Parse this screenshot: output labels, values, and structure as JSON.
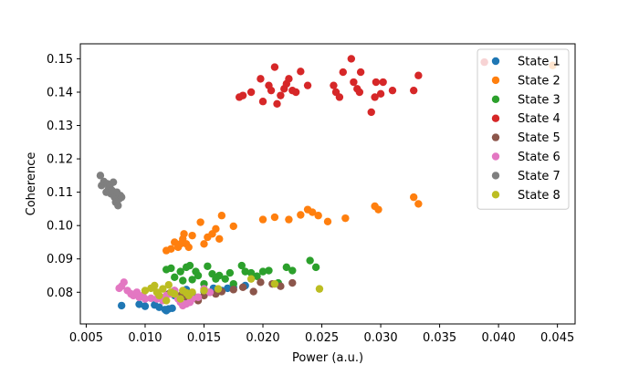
{
  "chart_data": {
    "type": "scatter",
    "title": "",
    "xlabel": "Power (a.u.)",
    "ylabel": "Coherence",
    "xlim": [
      0.0045,
      0.0465
    ],
    "ylim": [
      0.0705,
      0.1545
    ],
    "xticks": [
      0.005,
      0.01,
      0.015,
      0.02,
      0.025,
      0.03,
      0.035,
      0.04,
      0.045
    ],
    "xtick_labels": [
      "0.005",
      "0.010",
      "0.015",
      "0.020",
      "0.025",
      "0.030",
      "0.035",
      "0.040",
      "0.045"
    ],
    "yticks": [
      0.08,
      0.09,
      0.1,
      0.11,
      0.12,
      0.13,
      0.14,
      0.15
    ],
    "ytick_labels": [
      "0.08",
      "0.09",
      "0.10",
      "0.11",
      "0.12",
      "0.13",
      "0.14",
      "0.15"
    ],
    "grid": false,
    "legend_position": "top-right",
    "series": [
      {
        "name": "State 1",
        "color": "#1f77b4",
        "points": [
          [
            0.008,
            0.076
          ],
          [
            0.0095,
            0.0764
          ],
          [
            0.01,
            0.0758
          ],
          [
            0.0108,
            0.0762
          ],
          [
            0.0112,
            0.0755
          ],
          [
            0.0117,
            0.0748
          ],
          [
            0.012,
            0.075
          ],
          [
            0.0123,
            0.0752
          ],
          [
            0.0118,
            0.0745
          ],
          [
            0.0125,
            0.079
          ],
          [
            0.014,
            0.0795
          ],
          [
            0.015,
            0.0802
          ],
          [
            0.0158,
            0.0812
          ],
          [
            0.0165,
            0.0805
          ],
          [
            0.017,
            0.0812
          ],
          [
            0.0175,
            0.0815
          ],
          [
            0.0185,
            0.082
          ],
          [
            0.0135,
            0.0808
          ]
        ]
      },
      {
        "name": "State 2",
        "color": "#ff7f0e",
        "points": [
          [
            0.0118,
            0.0925
          ],
          [
            0.0122,
            0.093
          ],
          [
            0.0125,
            0.095
          ],
          [
            0.0128,
            0.0935
          ],
          [
            0.013,
            0.0945
          ],
          [
            0.0132,
            0.096
          ],
          [
            0.0133,
            0.0975
          ],
          [
            0.0135,
            0.0945
          ],
          [
            0.0137,
            0.0935
          ],
          [
            0.014,
            0.097
          ],
          [
            0.0147,
            0.101
          ],
          [
            0.015,
            0.0945
          ],
          [
            0.0153,
            0.0965
          ],
          [
            0.0157,
            0.0975
          ],
          [
            0.016,
            0.099
          ],
          [
            0.0163,
            0.096
          ],
          [
            0.0165,
            0.103
          ],
          [
            0.0175,
            0.0998
          ],
          [
            0.02,
            0.1018
          ],
          [
            0.021,
            0.1025
          ],
          [
            0.0222,
            0.1018
          ],
          [
            0.0232,
            0.1032
          ],
          [
            0.0238,
            0.1048
          ],
          [
            0.0242,
            0.104
          ],
          [
            0.0247,
            0.103
          ],
          [
            0.0255,
            0.1012
          ],
          [
            0.027,
            0.1022
          ],
          [
            0.0295,
            0.1058
          ],
          [
            0.0298,
            0.1048
          ],
          [
            0.0328,
            0.1085
          ],
          [
            0.0332,
            0.1065
          ],
          [
            0.0446,
            0.148
          ]
        ]
      },
      {
        "name": "State 3",
        "color": "#2ca02c",
        "points": [
          [
            0.0118,
            0.0868
          ],
          [
            0.0122,
            0.0872
          ],
          [
            0.0125,
            0.0845
          ],
          [
            0.013,
            0.0862
          ],
          [
            0.0132,
            0.0835
          ],
          [
            0.0135,
            0.0875
          ],
          [
            0.0138,
            0.088
          ],
          [
            0.014,
            0.0838
          ],
          [
            0.0143,
            0.0862
          ],
          [
            0.0145,
            0.085
          ],
          [
            0.015,
            0.0825
          ],
          [
            0.0153,
            0.0878
          ],
          [
            0.0157,
            0.0855
          ],
          [
            0.016,
            0.084
          ],
          [
            0.0163,
            0.085
          ],
          [
            0.0168,
            0.084
          ],
          [
            0.0172,
            0.0858
          ],
          [
            0.0175,
            0.0825
          ],
          [
            0.0182,
            0.088
          ],
          [
            0.0185,
            0.0862
          ],
          [
            0.019,
            0.0858
          ],
          [
            0.0195,
            0.0848
          ],
          [
            0.02,
            0.0862
          ],
          [
            0.0205,
            0.0865
          ],
          [
            0.0213,
            0.0828
          ],
          [
            0.022,
            0.0875
          ],
          [
            0.0225,
            0.0865
          ],
          [
            0.024,
            0.0895
          ],
          [
            0.0245,
            0.0875
          ]
        ]
      },
      {
        "name": "State 4",
        "color": "#d62728",
        "points": [
          [
            0.018,
            0.1385
          ],
          [
            0.0183,
            0.139
          ],
          [
            0.019,
            0.14
          ],
          [
            0.0198,
            0.144
          ],
          [
            0.02,
            0.1372
          ],
          [
            0.0205,
            0.142
          ],
          [
            0.0207,
            0.1405
          ],
          [
            0.021,
            0.1475
          ],
          [
            0.0212,
            0.1365
          ],
          [
            0.0215,
            0.139
          ],
          [
            0.0218,
            0.141
          ],
          [
            0.022,
            0.1425
          ],
          [
            0.0222,
            0.144
          ],
          [
            0.0225,
            0.1405
          ],
          [
            0.0228,
            0.14
          ],
          [
            0.0232,
            0.1462
          ],
          [
            0.0238,
            0.142
          ],
          [
            0.026,
            0.142
          ],
          [
            0.0262,
            0.14
          ],
          [
            0.0265,
            0.1385
          ],
          [
            0.0268,
            0.146
          ],
          [
            0.0275,
            0.15
          ],
          [
            0.0277,
            0.143
          ],
          [
            0.028,
            0.141
          ],
          [
            0.0282,
            0.14
          ],
          [
            0.0283,
            0.146
          ],
          [
            0.0292,
            0.134
          ],
          [
            0.0295,
            0.1385
          ],
          [
            0.0296,
            0.143
          ],
          [
            0.03,
            0.1395
          ],
          [
            0.0302,
            0.143
          ],
          [
            0.031,
            0.1405
          ],
          [
            0.0328,
            0.1405
          ],
          [
            0.0332,
            0.145
          ],
          [
            0.0388,
            0.149
          ]
        ]
      },
      {
        "name": "State 5",
        "color": "#8c564b",
        "points": [
          [
            0.012,
            0.0795
          ],
          [
            0.0125,
            0.0805
          ],
          [
            0.013,
            0.079
          ],
          [
            0.0135,
            0.0785
          ],
          [
            0.014,
            0.078
          ],
          [
            0.0145,
            0.0775
          ],
          [
            0.015,
            0.079
          ],
          [
            0.0155,
            0.08
          ],
          [
            0.016,
            0.0795
          ],
          [
            0.0165,
            0.0802
          ],
          [
            0.0175,
            0.0808
          ],
          [
            0.0183,
            0.0815
          ],
          [
            0.0192,
            0.0802
          ],
          [
            0.0198,
            0.083
          ],
          [
            0.0208,
            0.0825
          ],
          [
            0.0215,
            0.0818
          ],
          [
            0.0225,
            0.0828
          ]
        ]
      },
      {
        "name": "State 6",
        "color": "#e377c2",
        "points": [
          [
            0.0078,
            0.0812
          ],
          [
            0.008,
            0.0818
          ],
          [
            0.0082,
            0.083
          ],
          [
            0.0085,
            0.0805
          ],
          [
            0.0088,
            0.0795
          ],
          [
            0.009,
            0.079
          ],
          [
            0.0093,
            0.08
          ],
          [
            0.0095,
            0.0785
          ],
          [
            0.0098,
            0.079
          ],
          [
            0.01,
            0.078
          ],
          [
            0.0105,
            0.0782
          ],
          [
            0.011,
            0.078
          ],
          [
            0.0115,
            0.0775
          ],
          [
            0.0118,
            0.079
          ],
          [
            0.0122,
            0.0795
          ],
          [
            0.0125,
            0.0805
          ],
          [
            0.0128,
            0.078
          ],
          [
            0.013,
            0.077
          ],
          [
            0.0132,
            0.076
          ],
          [
            0.0135,
            0.0765
          ],
          [
            0.0138,
            0.077
          ],
          [
            0.014,
            0.078
          ],
          [
            0.0145,
            0.0785
          ],
          [
            0.015,
            0.081
          ],
          [
            0.0155,
            0.08
          ]
        ]
      },
      {
        "name": "State 7",
        "color": "#7f7f7f",
        "points": [
          [
            0.0062,
            0.115
          ],
          [
            0.0063,
            0.112
          ],
          [
            0.0065,
            0.1132
          ],
          [
            0.0067,
            0.11
          ],
          [
            0.0068,
            0.1125
          ],
          [
            0.0069,
            0.111
          ],
          [
            0.007,
            0.1118
          ],
          [
            0.0071,
            0.1095
          ],
          [
            0.0072,
            0.1105
          ],
          [
            0.0073,
            0.113
          ],
          [
            0.0074,
            0.1085
          ],
          [
            0.0075,
            0.107
          ],
          [
            0.0076,
            0.11
          ],
          [
            0.0077,
            0.106
          ],
          [
            0.0078,
            0.108
          ],
          [
            0.0079,
            0.109
          ],
          [
            0.008,
            0.1085
          ]
        ]
      },
      {
        "name": "State 8",
        "color": "#bcbd22",
        "points": [
          [
            0.01,
            0.0805
          ],
          [
            0.0105,
            0.0812
          ],
          [
            0.0108,
            0.082
          ],
          [
            0.011,
            0.08
          ],
          [
            0.0112,
            0.079
          ],
          [
            0.0115,
            0.081
          ],
          [
            0.0118,
            0.0775
          ],
          [
            0.012,
            0.0822
          ],
          [
            0.0122,
            0.08
          ],
          [
            0.0125,
            0.0795
          ],
          [
            0.013,
            0.078
          ],
          [
            0.0132,
            0.0805
          ],
          [
            0.0135,
            0.0798
          ],
          [
            0.0137,
            0.079
          ],
          [
            0.014,
            0.08
          ],
          [
            0.015,
            0.0805
          ],
          [
            0.0162,
            0.081
          ],
          [
            0.019,
            0.084
          ],
          [
            0.021,
            0.0825
          ],
          [
            0.0248,
            0.081
          ]
        ]
      }
    ]
  }
}
